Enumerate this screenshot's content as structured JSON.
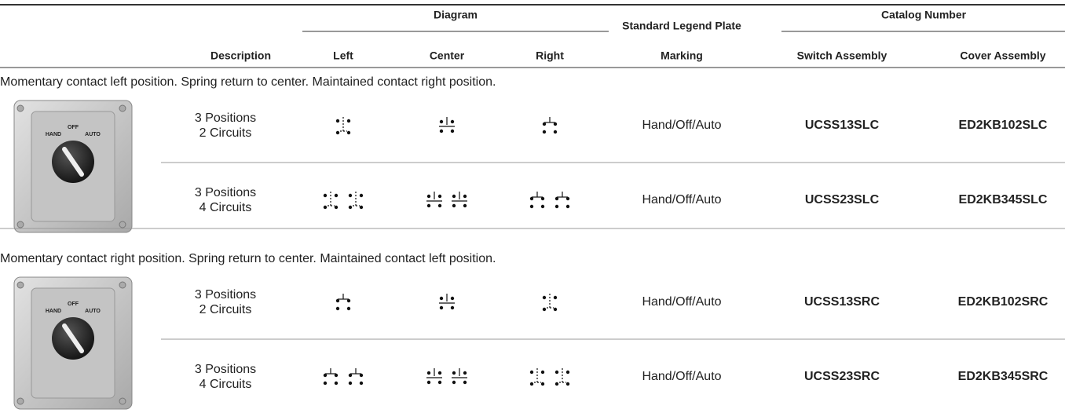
{
  "header": {
    "diagram": "Diagram",
    "legend_plate": "Standard Legend Plate",
    "catalog_number": "Catalog Number",
    "columns": [
      "Description",
      "Left",
      "Center",
      "Right",
      "Marking",
      "Switch Assembly",
      "Cover Assembly"
    ]
  },
  "sections": [
    {
      "title": "Momentary contact left position. Spring return to center. Maintained contact right position.",
      "switch_labels": [
        "OFF",
        "HAND",
        "AUTO"
      ],
      "rows": [
        {
          "description": [
            "3 Positions",
            "2 Circuits"
          ],
          "marking": "Hand/Off/Auto",
          "switch_assembly": "UCSS13SLC",
          "cover_assembly": "ED2KB102SLC"
        },
        {
          "description": [
            "3 Positions",
            "4 Circuits"
          ],
          "marking": "Hand/Off/Auto",
          "switch_assembly": "UCSS23SLC",
          "cover_assembly": "ED2KB345SLC"
        }
      ]
    },
    {
      "title": "Momentary contact right position. Spring return to center. Maintained contact left position.",
      "switch_labels": [
        "OFF",
        "HAND",
        "AUTO"
      ],
      "rows": [
        {
          "description": [
            "3 Positions",
            "2 Circuits"
          ],
          "marking": "Hand/Off/Auto",
          "switch_assembly": "UCSS13SRC",
          "cover_assembly": "ED2KB102SRC"
        },
        {
          "description": [
            "3 Positions",
            "4 Circuits"
          ],
          "marking": "Hand/Off/Auto",
          "switch_assembly": "UCSS23SRC",
          "cover_assembly": "ED2KB345SRC"
        }
      ]
    }
  ]
}
